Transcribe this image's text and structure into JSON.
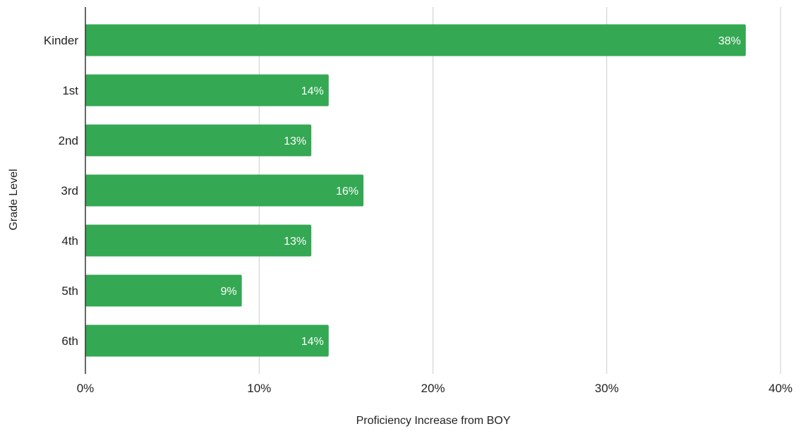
{
  "chart_data": {
    "type": "bar",
    "orientation": "horizontal",
    "categories": [
      "Kinder",
      "1st",
      "2nd",
      "3rd",
      "4th",
      "5th",
      "6th"
    ],
    "values": [
      38,
      14,
      13,
      16,
      13,
      9,
      14
    ],
    "data_labels": [
      "38%",
      "14%",
      "13%",
      "16%",
      "13%",
      "9%",
      "14%"
    ],
    "title": "",
    "xlabel": "Proficiency Increase from BOY",
    "ylabel": "Grade Level",
    "xlim": [
      0,
      40
    ],
    "x_ticks": [
      0,
      10,
      20,
      30,
      40
    ],
    "x_tick_labels": [
      "0%",
      "10%",
      "20%",
      "30%",
      "40%"
    ],
    "grid": "vertical",
    "legend": "none",
    "bar_color": "#34a853",
    "grid_color": "#cccccc",
    "axis_color": "#333333"
  }
}
